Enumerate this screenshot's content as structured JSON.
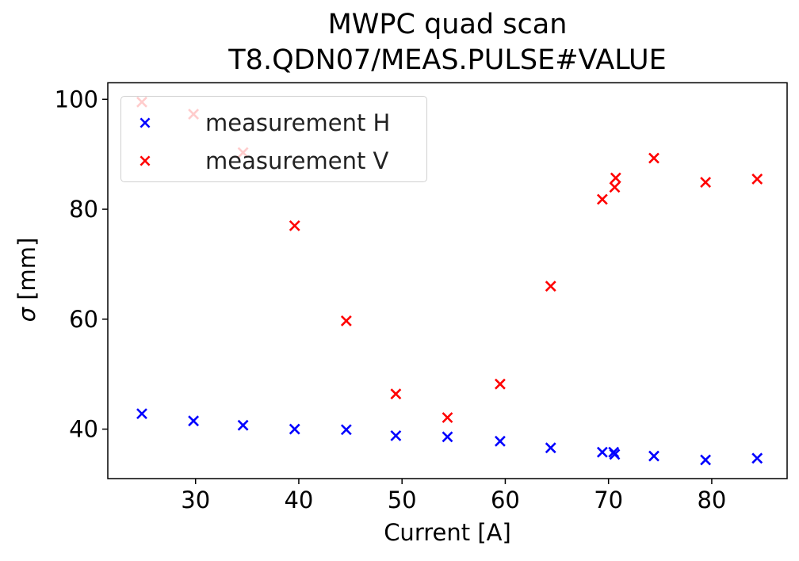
{
  "chart_data": {
    "type": "scatter",
    "title": "MWPC quad scan",
    "subtitle": "T8.QDN07/MEAS.PULSE#VALUE",
    "xlabel": "Current [A]",
    "ylabel_symbol": "σ",
    "ylabel_unit": "[mm]",
    "xlim": [
      21.5,
      87.3
    ],
    "ylim": [
      31,
      103
    ],
    "xticks": [
      30,
      40,
      50,
      60,
      70,
      80
    ],
    "yticks": [
      40,
      60,
      80,
      100
    ],
    "legend_position": "upper-left",
    "marker": "x",
    "series": [
      {
        "name": "measurement H",
        "color": "#0000ff",
        "x": [
          24.8,
          29.8,
          34.6,
          39.6,
          44.6,
          49.4,
          54.4,
          59.5,
          64.4,
          69.4,
          70.5,
          70.6,
          74.4,
          79.4,
          84.4
        ],
        "y": [
          42.8,
          41.5,
          40.7,
          40.0,
          39.9,
          38.8,
          38.6,
          37.8,
          36.6,
          35.8,
          35.8,
          35.4,
          35.1,
          34.4,
          34.7
        ]
      },
      {
        "name": "measurement V",
        "color": "#ff0000",
        "x": [
          24.8,
          29.8,
          34.6,
          39.6,
          44.6,
          49.4,
          54.4,
          59.5,
          64.4,
          69.4,
          70.6,
          70.7,
          74.4,
          79.4,
          84.4
        ],
        "y": [
          99.5,
          97.3,
          90.3,
          77.0,
          59.7,
          46.4,
          42.1,
          48.2,
          66.0,
          81.8,
          84.0,
          85.7,
          89.3,
          84.9,
          85.5
        ]
      }
    ]
  }
}
